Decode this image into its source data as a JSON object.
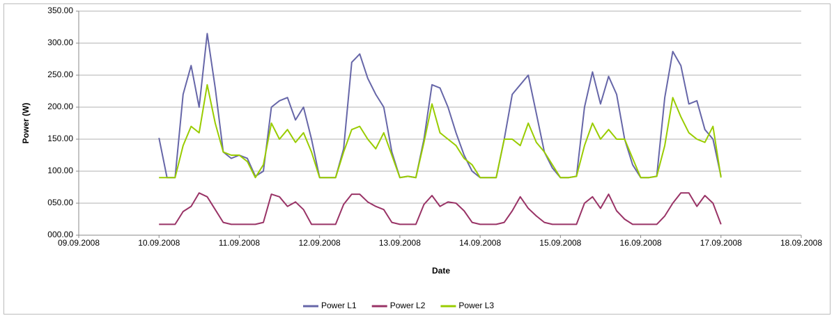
{
  "chart_data": {
    "type": "line",
    "x_label": "Date",
    "y_label": "Power (W)",
    "x": [
      1,
      1.1,
      1.2,
      1.3,
      1.4,
      1.5,
      1.6,
      1.7,
      1.8,
      1.9,
      2,
      2.1,
      2.2,
      2.3,
      2.4,
      2.5,
      2.6,
      2.7,
      2.8,
      2.9,
      3,
      3.1,
      3.2,
      3.3,
      3.4,
      3.5,
      3.6,
      3.7,
      3.8,
      3.9,
      4,
      4.1,
      4.2,
      4.3,
      4.4,
      4.5,
      4.6,
      4.7,
      4.8,
      4.9,
      5,
      5.1,
      5.2,
      5.3,
      5.4,
      5.5,
      5.6,
      5.7,
      5.8,
      5.9,
      6,
      6.1,
      6.2,
      6.3,
      6.4,
      6.5,
      6.6,
      6.7,
      6.8,
      6.9,
      7,
      7.1,
      7.2,
      7.3,
      7.4,
      7.5,
      7.6,
      7.7,
      7.8,
      7.9,
      8
    ],
    "series": [
      {
        "name": "Power L1",
        "color": "#6666a8",
        "values": [
          152,
          90,
          90,
          220,
          265,
          200,
          315,
          230,
          130,
          120,
          125,
          120,
          92,
          100,
          200,
          210,
          215,
          180,
          200,
          150,
          90,
          90,
          90,
          135,
          270,
          283,
          245,
          220,
          200,
          130,
          90,
          92,
          90,
          150,
          235,
          230,
          200,
          160,
          125,
          100,
          90,
          90,
          90,
          150,
          220,
          235,
          250,
          190,
          130,
          105,
          90,
          90,
          92,
          200,
          255,
          205,
          248,
          220,
          150,
          110,
          90,
          90,
          92,
          215,
          287,
          265,
          205,
          210,
          165,
          150,
          92
        ]
      },
      {
        "name": "Power L2",
        "color": "#993366",
        "values": [
          17,
          17,
          17,
          37,
          45,
          66,
          60,
          40,
          20,
          17,
          17,
          17,
          17,
          20,
          64,
          60,
          45,
          52,
          40,
          17,
          17,
          17,
          17,
          48,
          64,
          64,
          52,
          45,
          40,
          20,
          17,
          17,
          17,
          48,
          62,
          45,
          52,
          50,
          38,
          20,
          17,
          17,
          17,
          20,
          38,
          60,
          42,
          30,
          20,
          17,
          17,
          17,
          17,
          50,
          60,
          42,
          64,
          38,
          25,
          17,
          17,
          17,
          17,
          30,
          50,
          66,
          66,
          45,
          62,
          50,
          17
        ]
      },
      {
        "name": "Power L3",
        "color": "#99cc00",
        "values": [
          90,
          90,
          90,
          140,
          170,
          160,
          235,
          175,
          130,
          125,
          125,
          115,
          90,
          110,
          175,
          150,
          165,
          145,
          160,
          130,
          90,
          90,
          90,
          130,
          165,
          170,
          150,
          135,
          160,
          125,
          90,
          92,
          90,
          145,
          205,
          160,
          150,
          140,
          120,
          110,
          90,
          90,
          90,
          150,
          150,
          140,
          175,
          145,
          130,
          110,
          90,
          90,
          92,
          140,
          175,
          150,
          165,
          150,
          150,
          120,
          90,
          90,
          92,
          140,
          215,
          185,
          160,
          150,
          145,
          170,
          90
        ]
      }
    ],
    "xlim": [
      0,
      9
    ],
    "xticks": [
      {
        "value": 0,
        "label": "09.09.2008"
      },
      {
        "value": 1,
        "label": "10.09.2008"
      },
      {
        "value": 2,
        "label": "11.09.2008"
      },
      {
        "value": 3,
        "label": "12.09.2008"
      },
      {
        "value": 4,
        "label": "13.09.2008"
      },
      {
        "value": 5,
        "label": "14.09.2008"
      },
      {
        "value": 6,
        "label": "15.09.2008"
      },
      {
        "value": 7,
        "label": "16.09.2008"
      },
      {
        "value": 8,
        "label": "17.09.2008"
      },
      {
        "value": 9,
        "label": "18.09.2008"
      }
    ],
    "ylim": [
      0,
      350
    ],
    "yticks": [
      {
        "value": 0,
        "label": "000.00"
      },
      {
        "value": 50,
        "label": "050.00"
      },
      {
        "value": 100,
        "label": "100.00"
      },
      {
        "value": 150,
        "label": "150.00"
      },
      {
        "value": 200,
        "label": "200.00"
      },
      {
        "value": 250,
        "label": "250.00"
      },
      {
        "value": 300,
        "label": "300.00"
      },
      {
        "value": 350,
        "label": "350.00"
      }
    ],
    "grid": true,
    "legend": "bottom"
  }
}
